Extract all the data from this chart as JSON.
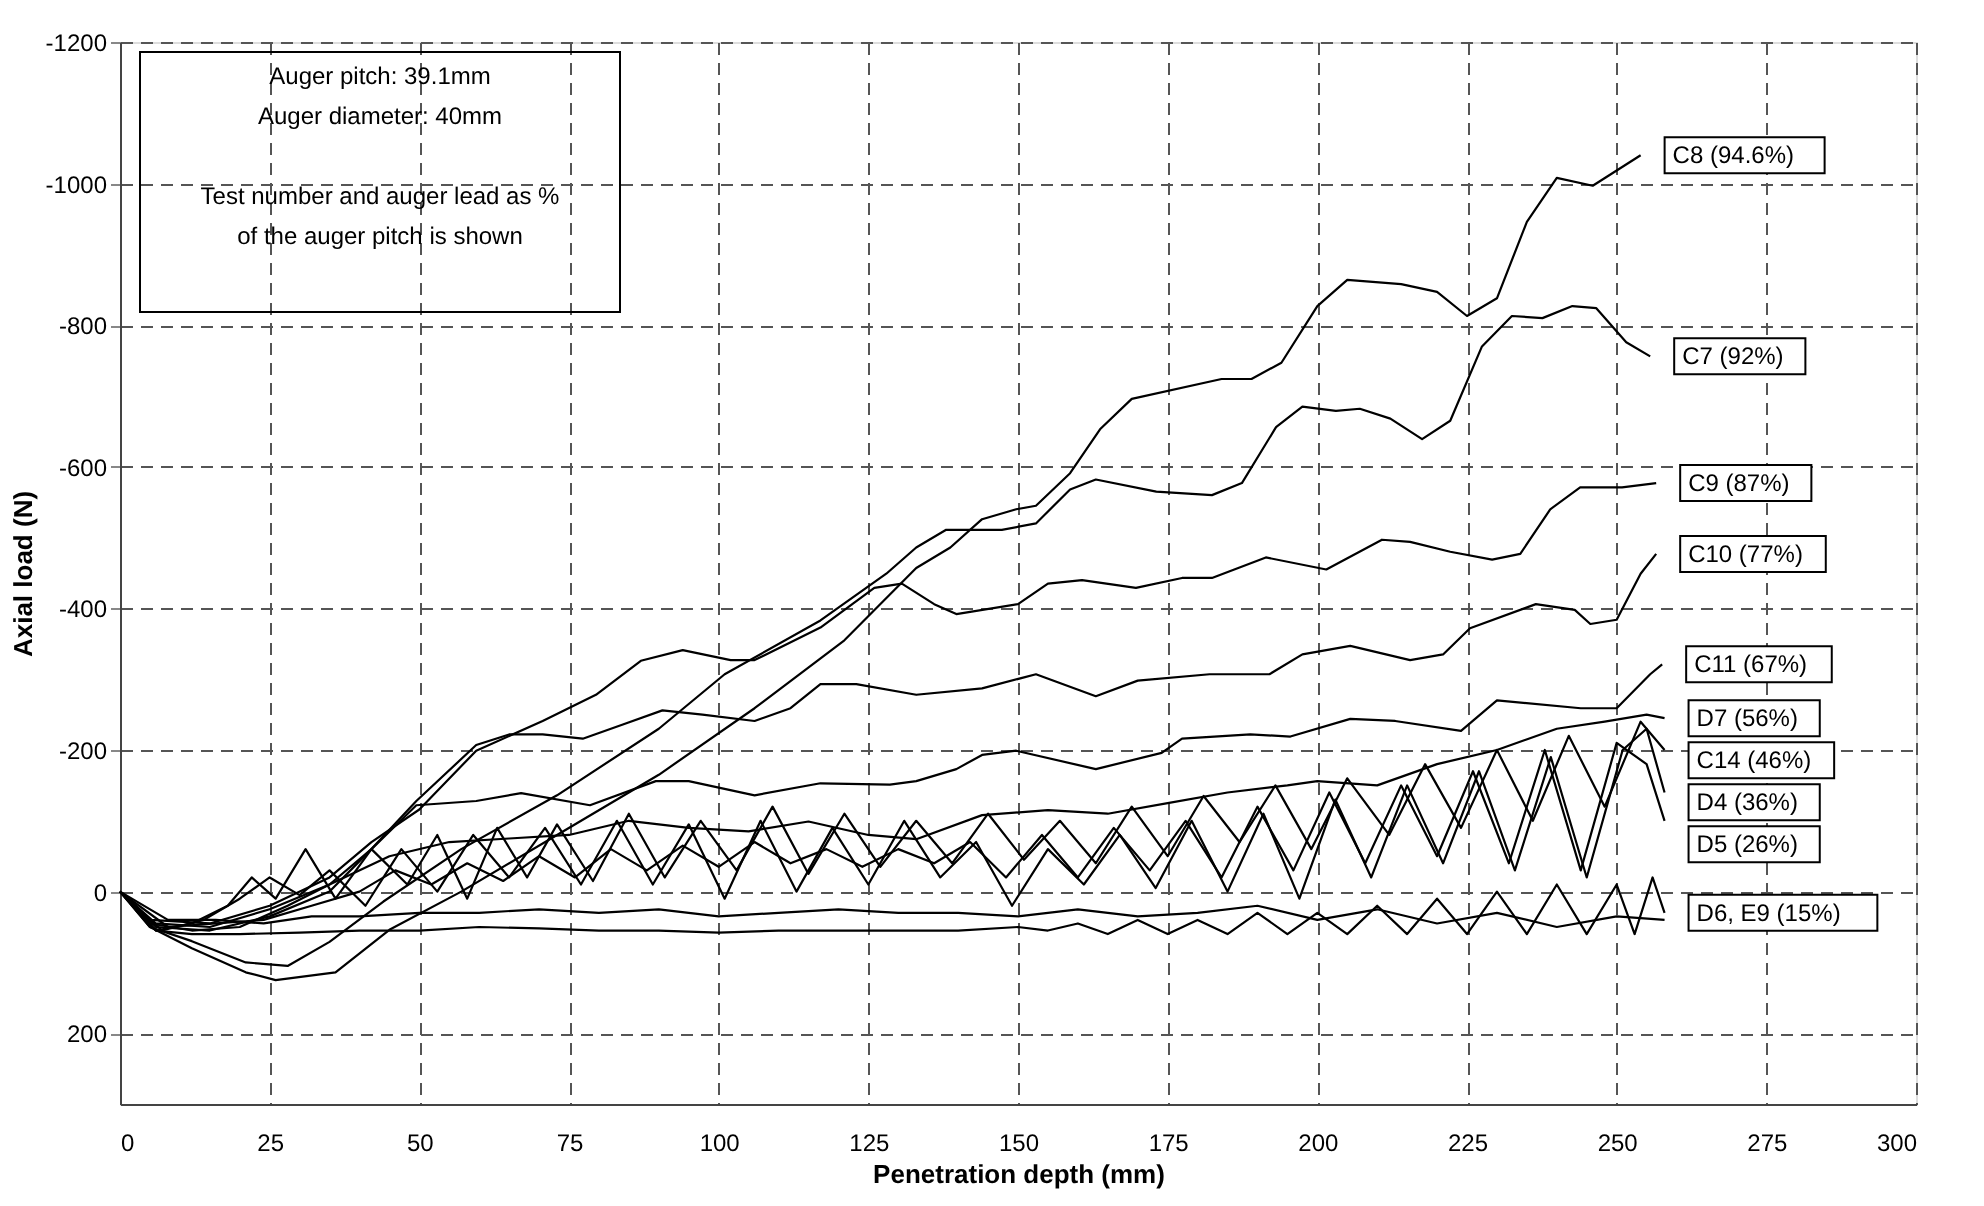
{
  "chart_data": {
    "type": "line",
    "xlabel": "Penetration depth (mm)",
    "ylabel": "Axial load (N)",
    "xlim": [
      0,
      300
    ],
    "xticks": [
      0,
      25,
      50,
      75,
      100,
      125,
      150,
      175,
      200,
      225,
      250,
      275,
      300
    ],
    "ylim": [
      300,
      -1200
    ],
    "yticks": [
      -1200,
      -1000,
      -800,
      -600,
      -400,
      -200,
      0,
      200
    ],
    "grid": true,
    "line_style": "solid",
    "annotations": [
      "Auger pitch: 39.1mm",
      "Auger diameter: 40mm",
      "Test number and auger lead as % of the auger pitch is shown"
    ],
    "series": [
      {
        "name": "C8 (94.6%)",
        "color": "#000000",
        "x": [
          0,
          5,
          12,
          21,
          26,
          36,
          45,
          57,
          73,
          90,
          106,
          121,
          133,
          138.7,
          144,
          149.7,
          153,
          158.7,
          163.7,
          169,
          184,
          189,
          194,
          200,
          205,
          214,
          220,
          225,
          230,
          235,
          240,
          246,
          254
        ],
        "values": [
          0,
          50,
          80,
          114,
          125,
          114,
          54,
          0,
          -80,
          -165,
          -259,
          -355,
          -457,
          -486,
          -526,
          -540,
          -545,
          -591,
          -653,
          -696,
          -724,
          -724,
          -747,
          -827,
          -864,
          -858,
          -847,
          -813,
          -838,
          -946,
          -1008,
          -997,
          -1040
        ]
      },
      {
        "name": "C7 (92%)",
        "color": "#000000",
        "x": [
          0,
          5,
          12,
          21,
          28,
          35,
          44,
          57,
          73,
          90,
          101,
          117,
          128,
          133,
          138,
          147.3,
          153,
          158.7,
          163,
          173.1,
          182.4,
          187.4,
          193.1,
          197.5,
          203.1,
          207.1,
          212.2,
          217.5,
          222.2,
          227.5,
          232.5,
          237.6,
          242.6,
          246.6,
          251.6,
          255.6
        ],
        "values": [
          0,
          50,
          70,
          100,
          105,
          71,
          14,
          -60,
          -136,
          -230,
          -307,
          -383,
          -449,
          -486,
          -511,
          -511,
          -520,
          -568,
          -582,
          -565,
          -560,
          -577,
          -656,
          -685,
          -679,
          -682,
          -668,
          -639,
          -665,
          -770,
          -813,
          -810,
          -827,
          -824,
          -776,
          -756
        ]
      },
      {
        "name": "C9 (87%)",
        "color": "#000000",
        "x": [
          0,
          5,
          15,
          25,
          35,
          42,
          50,
          59.5,
          70.6,
          79.5,
          87,
          94,
          102,
          106,
          117,
          126,
          130.6,
          136,
          139.7,
          150,
          155,
          160.7,
          169.7,
          177.4,
          182.4,
          191.4,
          201.5,
          210.8,
          215.5,
          222.2,
          229.2,
          233.9,
          238.9,
          243.9,
          250.9,
          256.6
        ],
        "values": [
          0,
          40,
          45,
          20,
          -20,
          -70,
          -116,
          -199,
          -241,
          -278,
          -326,
          -341,
          -327,
          -327,
          -373,
          -429,
          -435,
          -406,
          -392,
          -406,
          -435,
          -440,
          -429,
          -443,
          -443,
          -472,
          -455,
          -497,
          -494,
          -480,
          -469,
          -477,
          -540,
          -571,
          -571,
          -577
        ]
      },
      {
        "name": "C10 (77%)",
        "color": "#000000",
        "x": [
          0,
          6,
          15,
          25,
          35,
          42,
          49.5,
          59.5,
          65,
          70.6,
          77.3,
          84,
          90.6,
          97.3,
          106,
          112,
          117,
          123,
          133,
          144,
          153,
          163,
          170,
          182,
          192,
          197.5,
          205.5,
          215.5,
          221,
          225.5,
          236.5,
          243,
          245.6,
          250,
          254,
          256.6
        ],
        "values": [
          0,
          45,
          50,
          25,
          -10,
          -60,
          -128,
          -207,
          -222,
          -222,
          -216,
          -236,
          -256,
          -250,
          -241,
          -259,
          -293,
          -293,
          -278,
          -287,
          -307,
          -276,
          -298,
          -307,
          -307,
          -335,
          -347,
          -327,
          -335,
          -372,
          -406,
          -398,
          -378,
          -384,
          -449,
          -477
        ]
      },
      {
        "name": "C11 (67%)",
        "color": "#000000",
        "x": [
          0,
          6,
          15,
          25,
          35,
          42,
          49.5,
          59.5,
          67,
          78.5,
          89.5,
          95,
          106,
          117,
          128.6,
          133,
          139.7,
          144,
          149.7,
          163,
          174,
          177.4,
          188.8,
          195.5,
          205.5,
          213,
          224,
          230,
          244,
          250,
          255.6,
          257.6
        ],
        "values": [
          0,
          50,
          55,
          35,
          0,
          -60,
          -122,
          -128,
          -139,
          -122,
          -156,
          -156,
          -136,
          -153,
          -151,
          -156,
          -173,
          -193,
          -199,
          -173,
          -196,
          -216,
          -222,
          -219,
          -244,
          -241,
          -227,
          -270,
          -259,
          -259,
          -307,
          -321
        ]
      },
      {
        "name": "D7 (56%)",
        "color": "#000000",
        "x": [
          0,
          5,
          12,
          20,
          28,
          35,
          45,
          55,
          65,
          75,
          85,
          95,
          105,
          115,
          125,
          133,
          144,
          155,
          165,
          175,
          185,
          195,
          200,
          210,
          220,
          230,
          240,
          248,
          255,
          258
        ],
        "values": [
          0,
          45,
          55,
          50,
          20,
          -10,
          -50,
          -70,
          -75,
          -80,
          -100,
          -90,
          -85,
          -99,
          -80,
          -74,
          -108,
          -115,
          -110,
          -125,
          -140,
          -150,
          -156,
          -150,
          -180,
          -200,
          -230,
          -240,
          -250,
          -245
        ]
      },
      {
        "name": "C14 (46%)",
        "color": "#000000",
        "x": [
          0,
          6,
          12,
          18,
          22,
          26,
          31,
          36,
          42,
          48,
          53,
          58,
          63,
          68,
          73,
          79,
          85,
          91,
          97,
          103,
          109,
          115,
          121,
          127,
          133,
          139,
          145,
          151,
          157,
          163,
          169,
          175,
          181,
          187,
          193,
          199,
          205,
          212,
          218,
          224,
          230,
          236,
          242,
          248,
          254,
          258
        ],
        "values": [
          0,
          55,
          45,
          20,
          -20,
          10,
          -60,
          10,
          -60,
          -10,
          -80,
          10,
          -90,
          -20,
          -95,
          -15,
          -110,
          -20,
          -100,
          -30,
          -120,
          -25,
          -110,
          -35,
          -100,
          -40,
          -110,
          -45,
          -100,
          -40,
          -120,
          -50,
          -135,
          -70,
          -150,
          -60,
          -160,
          -80,
          -180,
          -90,
          -200,
          -100,
          -220,
          -120,
          -240,
          -200
        ]
      },
      {
        "name": "D4 (36%)",
        "color": "#000000",
        "x": [
          0,
          7,
          14,
          20,
          25,
          30,
          35,
          41,
          47,
          53,
          59,
          65,
          71,
          77,
          83,
          89,
          95,
          101,
          107,
          113,
          119,
          125,
          131,
          137,
          143,
          149,
          155,
          161,
          167,
          173,
          179,
          185,
          191,
          197,
          203,
          209,
          215,
          221,
          227,
          233,
          239,
          245,
          251,
          255,
          258
        ],
        "values": [
          0,
          55,
          40,
          10,
          -20,
          5,
          -30,
          20,
          -60,
          0,
          -80,
          -20,
          -90,
          -10,
          -100,
          -10,
          -95,
          10,
          -100,
          0,
          -90,
          -10,
          -100,
          -20,
          -70,
          20,
          -60,
          -10,
          -80,
          -5,
          -100,
          0,
          -110,
          10,
          -130,
          -20,
          -150,
          -40,
          -170,
          -30,
          -190,
          -20,
          -200,
          -230,
          -140
        ]
      },
      {
        "name": "D5 (26%)",
        "color": "#000000",
        "x": [
          0,
          8,
          16,
          24,
          32,
          40,
          46,
          52,
          58,
          64,
          70,
          76,
          82,
          88,
          94,
          100,
          106,
          112,
          118,
          124,
          130,
          136,
          142,
          148,
          154,
          160,
          166,
          172,
          178,
          184,
          190,
          196,
          202,
          208,
          214,
          220,
          226,
          232,
          238,
          244,
          250,
          255,
          258
        ],
        "values": [
          0,
          50,
          45,
          40,
          20,
          0,
          -30,
          -10,
          -40,
          -15,
          -50,
          -20,
          -60,
          -30,
          -65,
          -35,
          -70,
          -40,
          -60,
          -35,
          -60,
          -40,
          -70,
          -20,
          -80,
          -20,
          -90,
          -30,
          -100,
          -20,
          -120,
          -30,
          -140,
          -40,
          -150,
          -50,
          -170,
          -40,
          -200,
          -30,
          -210,
          -180,
          -100
        ]
      },
      {
        "name": "D6, E9 (15%)",
        "color": "#000000",
        "x": [
          0,
          6,
          12,
          20,
          30,
          40,
          50,
          60,
          70,
          80,
          90,
          100,
          110,
          120,
          130,
          140,
          150,
          155,
          160,
          165,
          170,
          175,
          180,
          185,
          190,
          195,
          200,
          205,
          210,
          215,
          220,
          225,
          230,
          235,
          240,
          245,
          250,
          253,
          256,
          258
        ],
        "values": [
          0,
          55,
          60,
          60,
          58,
          55,
          55,
          50,
          52,
          55,
          55,
          58,
          55,
          55,
          55,
          55,
          50,
          55,
          45,
          60,
          40,
          60,
          40,
          60,
          30,
          60,
          30,
          60,
          20,
          60,
          10,
          60,
          0,
          60,
          -10,
          60,
          -10,
          60,
          -20,
          30
        ]
      },
      {
        "color": "#000000",
        "x": [
          0,
          8,
          16,
          24,
          32,
          40,
          50,
          60,
          70,
          80,
          90,
          100,
          110,
          120,
          130,
          140,
          150,
          160,
          170,
          180,
          190,
          200,
          210,
          220,
          230,
          240,
          250,
          258
        ],
        "values": [
          0,
          40,
          40,
          45,
          35,
          35,
          30,
          30,
          25,
          30,
          25,
          35,
          30,
          25,
          30,
          30,
          35,
          25,
          35,
          30,
          20,
          40,
          25,
          45,
          30,
          50,
          35,
          40
        ]
      }
    ]
  }
}
